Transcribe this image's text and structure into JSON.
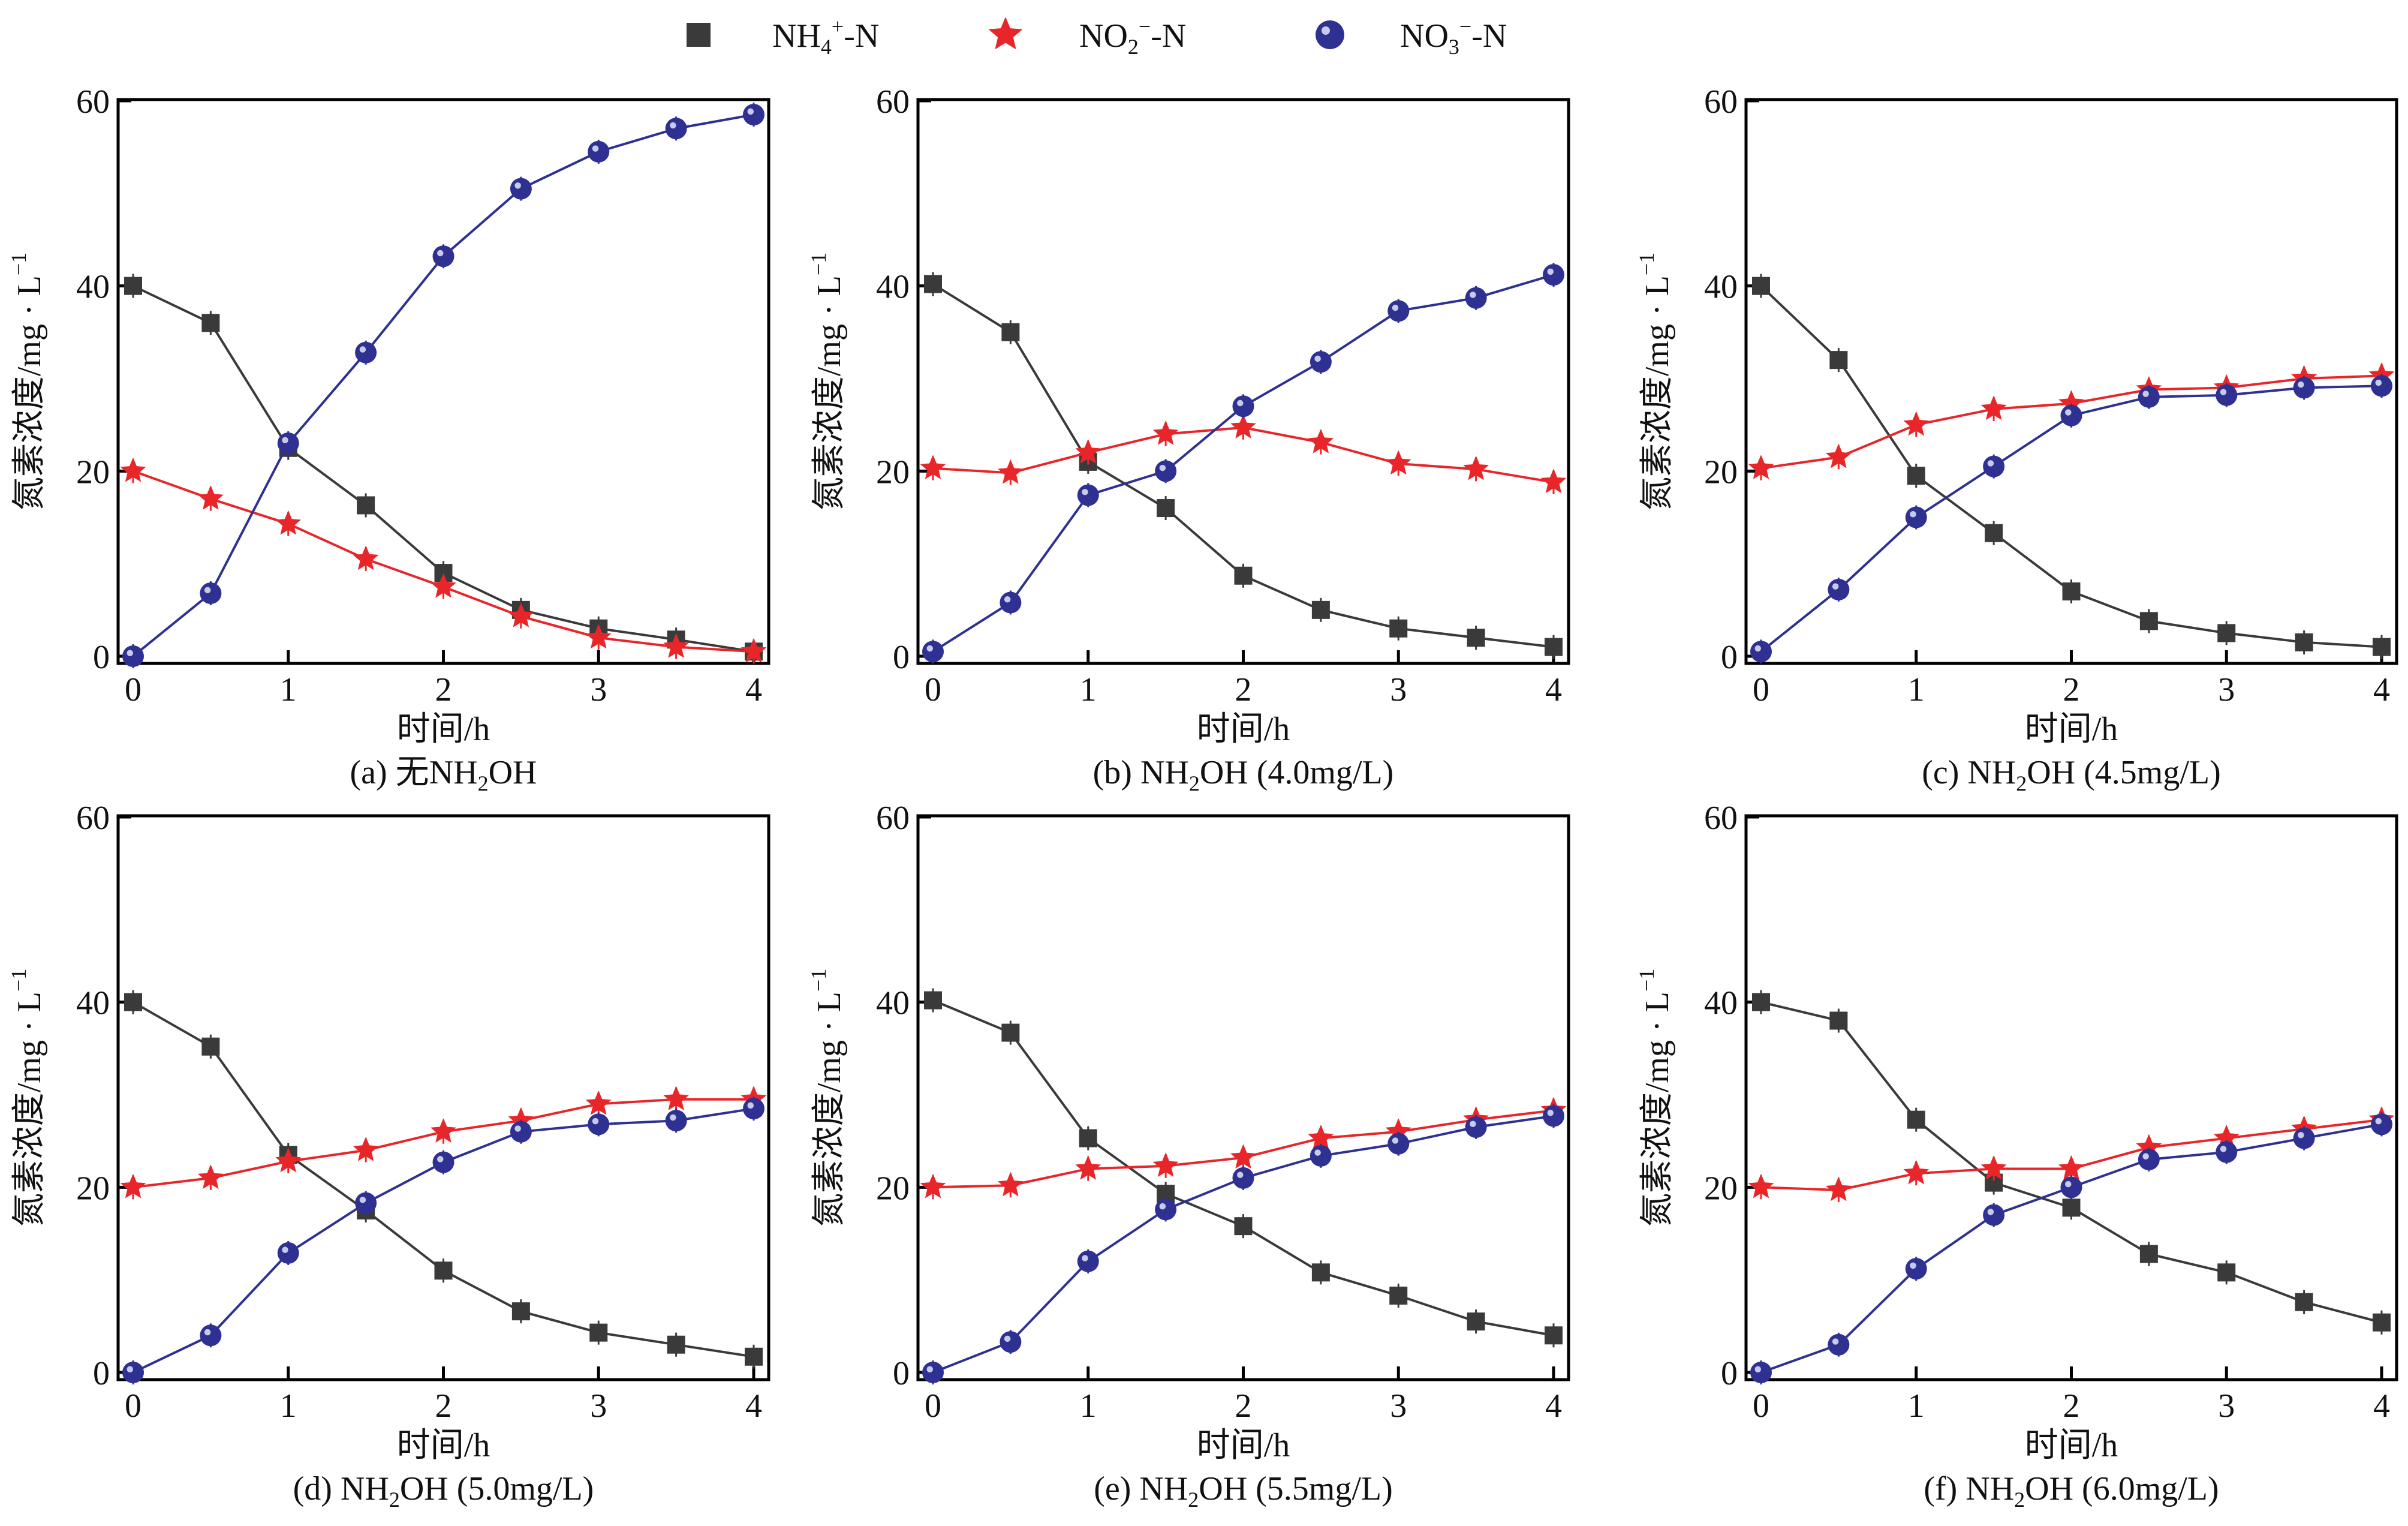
{
  "legend": [
    {
      "base": "NH",
      "sub": "4",
      "sup": "+",
      "suffix": "-N",
      "marker": "square",
      "color": "#3a3a3a"
    },
    {
      "base": "NO",
      "sub": "2",
      "sup": "−",
      "suffix": "-N",
      "marker": "star",
      "color": "#e8262a"
    },
    {
      "base": "NO",
      "sub": "3",
      "sup": "−",
      "suffix": "-N",
      "marker": "circle",
      "color": "#2e3192"
    }
  ],
  "chart_data": [
    {
      "type": "line",
      "panel": "a",
      "caption": {
        "prefix": "(a) 无NH",
        "sub": "2",
        "suffix": "OH"
      },
      "xlabel": "时间/h",
      "ylabel": {
        "text": "氮素浓度/mg · L",
        "sup": "−1"
      },
      "xlim": [
        0,
        4
      ],
      "ylim": [
        0,
        60
      ],
      "xticks": [
        0,
        1,
        2,
        3,
        4
      ],
      "yticks": [
        0,
        20,
        40,
        60
      ],
      "x": [
        0,
        0.5,
        1,
        1.5,
        2,
        2.5,
        3,
        3.5,
        4
      ],
      "series": [
        {
          "name": "NH4+-N",
          "values": [
            40,
            36,
            22.5,
            16.3,
            9,
            5,
            3,
            1.8,
            0.5
          ]
        },
        {
          "name": "NO2−-N",
          "values": [
            20,
            17,
            14.3,
            10.5,
            7.5,
            4.3,
            2,
            1,
            0.5
          ]
        },
        {
          "name": "NO3−-N",
          "values": [
            0,
            6.8,
            23,
            32.8,
            43.2,
            50.5,
            54.5,
            57,
            58.5
          ]
        }
      ]
    },
    {
      "type": "line",
      "panel": "b",
      "caption": {
        "prefix": "(b) NH",
        "sub": "2",
        "suffix": "OH (4.0mg/L)"
      },
      "xlabel": "时间/h",
      "ylabel": {
        "text": "氮素浓度/mg · L",
        "sup": "−1"
      },
      "xlim": [
        0,
        4
      ],
      "ylim": [
        0,
        60
      ],
      "xticks": [
        0,
        1,
        2,
        3,
        4
      ],
      "yticks": [
        0,
        20,
        40,
        60
      ],
      "x": [
        0,
        0.5,
        1,
        1.5,
        2,
        2.5,
        3,
        3.5,
        4
      ],
      "series": [
        {
          "name": "NH4+-N",
          "values": [
            40.2,
            35,
            21,
            16,
            8.7,
            5,
            3,
            2,
            1
          ]
        },
        {
          "name": "NO2−-N",
          "values": [
            20.3,
            19.8,
            22,
            24,
            24.7,
            23.1,
            20.8,
            20.2,
            18.8
          ]
        },
        {
          "name": "NO3−-N",
          "values": [
            0.5,
            5.8,
            17.4,
            20,
            27,
            31.8,
            37.3,
            38.7,
            41.2
          ]
        }
      ]
    },
    {
      "type": "line",
      "panel": "c",
      "caption": {
        "prefix": "(c) NH",
        "sub": "2",
        "suffix": "OH (4.5mg/L)"
      },
      "xlabel": "时间/h",
      "ylabel": {
        "text": "氮素浓度/mg · L",
        "sup": "−1"
      },
      "xlim": [
        0,
        4
      ],
      "ylim": [
        0,
        60
      ],
      "xticks": [
        0,
        1,
        2,
        3,
        4
      ],
      "yticks": [
        0,
        20,
        40,
        60
      ],
      "x": [
        0,
        0.5,
        1,
        1.5,
        2,
        2.5,
        3,
        3.5,
        4
      ],
      "series": [
        {
          "name": "NH4+-N",
          "values": [
            40,
            32,
            19.5,
            13.3,
            7,
            3.8,
            2.5,
            1.5,
            1
          ]
        },
        {
          "name": "NO2−-N",
          "values": [
            20.3,
            21.5,
            25,
            26.7,
            27.3,
            28.8,
            29,
            30,
            30.3
          ]
        },
        {
          "name": "NO3−-N",
          "values": [
            0.5,
            7.2,
            15,
            20.5,
            26,
            28,
            28.2,
            29,
            29.2
          ]
        }
      ]
    },
    {
      "type": "line",
      "panel": "d",
      "caption": {
        "prefix": "(d) NH",
        "sub": "2",
        "suffix": "OH (5.0mg/L)"
      },
      "xlabel": "时间/h",
      "ylabel": {
        "text": "氮素浓度/mg · L",
        "sup": "−1"
      },
      "xlim": [
        0,
        4
      ],
      "ylim": [
        0,
        60
      ],
      "xticks": [
        0,
        1,
        2,
        3,
        4
      ],
      "yticks": [
        0,
        20,
        40,
        60
      ],
      "x": [
        0,
        0.5,
        1,
        1.5,
        2,
        2.5,
        3,
        3.5,
        4
      ],
      "series": [
        {
          "name": "NH4+-N",
          "values": [
            40,
            35.2,
            23.5,
            17.5,
            11,
            6.6,
            4.3,
            3,
            1.7
          ]
        },
        {
          "name": "NO2−-N",
          "values": [
            20,
            21,
            22.8,
            24,
            26,
            27.2,
            29,
            29.5,
            29.5
          ]
        },
        {
          "name": "NO3−-N",
          "values": [
            0,
            4,
            12.9,
            18.3,
            22.7,
            26,
            26.8,
            27.2,
            28.5
          ]
        }
      ]
    },
    {
      "type": "line",
      "panel": "e",
      "caption": {
        "prefix": "(e) NH",
        "sub": "2",
        "suffix": "OH (5.5mg/L)"
      },
      "xlabel": "时间/h",
      "ylabel": {
        "text": "氮素浓度/mg · L",
        "sup": "−1"
      },
      "xlim": [
        0,
        4
      ],
      "ylim": [
        0,
        60
      ],
      "xticks": [
        0,
        1,
        2,
        3,
        4
      ],
      "yticks": [
        0,
        20,
        40,
        60
      ],
      "x": [
        0,
        0.5,
        1,
        1.5,
        2,
        2.5,
        3,
        3.5,
        4
      ],
      "series": [
        {
          "name": "NH4+-N",
          "values": [
            40.2,
            36.7,
            25.3,
            19.3,
            15.8,
            10.8,
            8.3,
            5.5,
            4
          ]
        },
        {
          "name": "NO2−-N",
          "values": [
            20,
            20.2,
            22,
            22.3,
            23.2,
            25.3,
            26,
            27.3,
            28.3
          ]
        },
        {
          "name": "NO3−-N",
          "values": [
            0,
            3.3,
            12,
            17.6,
            21,
            23.4,
            24.7,
            26.5,
            27.7
          ]
        }
      ]
    },
    {
      "type": "line",
      "panel": "f",
      "caption": {
        "prefix": "(f) NH",
        "sub": "2",
        "suffix": "OH (6.0mg/L)"
      },
      "xlabel": "时间/h",
      "ylabel": {
        "text": "氮素浓度/mg · L",
        "sup": "−1"
      },
      "xlim": [
        0,
        4
      ],
      "ylim": [
        0,
        60
      ],
      "xticks": [
        0,
        1,
        2,
        3,
        4
      ],
      "yticks": [
        0,
        20,
        40,
        60
      ],
      "x": [
        0,
        0.5,
        1,
        1.5,
        2,
        2.5,
        3,
        3.5,
        4
      ],
      "series": [
        {
          "name": "NH4+-N",
          "values": [
            40,
            38,
            27.3,
            20.5,
            17.8,
            12.8,
            10.8,
            7.6,
            5.4
          ]
        },
        {
          "name": "NO2−-N",
          "values": [
            20,
            19.7,
            21.5,
            22,
            22,
            24.3,
            25.3,
            26.3,
            27.3
          ]
        },
        {
          "name": "NO3−-N",
          "values": [
            0,
            3,
            11.2,
            17,
            20,
            23,
            23.8,
            25.3,
            26.8
          ]
        }
      ]
    }
  ]
}
